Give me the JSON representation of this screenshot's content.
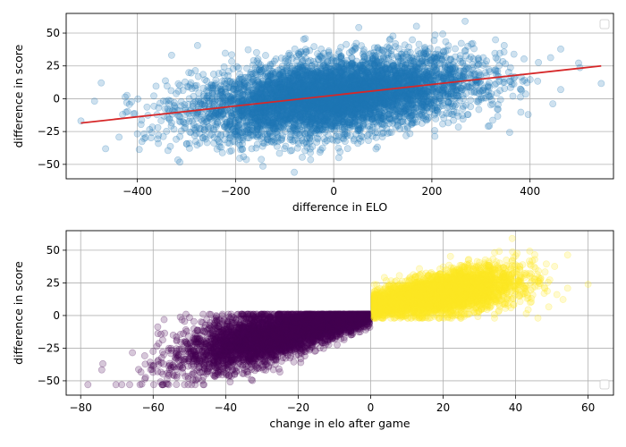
{
  "chart_data": [
    {
      "type": "scatter",
      "xlabel": "difference in ELO",
      "ylabel": "difference in score",
      "xlim": [
        -545,
        570
      ],
      "ylim": [
        -61,
        65
      ],
      "xticks": [
        -400,
        -200,
        0,
        200,
        400
      ],
      "yticks": [
        -50,
        -25,
        0,
        25,
        50
      ],
      "grid": true,
      "legend": "top-right, empty",
      "colors": {
        "points": "#1f77b4",
        "fit_line": "#d62728"
      },
      "fit_line": {
        "x": [
          -515,
          545
        ],
        "y": [
          -18.5,
          25
        ]
      },
      "series": [
        {
          "type": "scatter",
          "point_count": 6000,
          "x_range": [
            -515,
            545
          ],
          "y_range": [
            -56,
            59
          ],
          "trend_slope": 0.041,
          "spread_sd": 14
        }
      ]
    },
    {
      "type": "scatter",
      "xlabel": "change in elo after game",
      "ylabel": "difference in score",
      "xlim": [
        -84,
        67
      ],
      "ylim": [
        -61,
        65
      ],
      "xticks": [
        -80,
        -60,
        -40,
        -20,
        0,
        20,
        40,
        60
      ],
      "yticks": [
        -50,
        -25,
        0,
        25,
        50
      ],
      "grid": true,
      "legend": "bottom-right, empty",
      "colors": {
        "losses": "#440154",
        "wins": "#fde725"
      },
      "series": [
        {
          "type": "scatter",
          "color": "#440154",
          "point_count": 4500,
          "x_range": [
            -78,
            0
          ],
          "y_range": [
            -53,
            1
          ]
        },
        {
          "type": "scatter",
          "color": "#fde725",
          "point_count": 4500,
          "x_range": [
            1,
            60
          ],
          "y_range": [
            -2,
            59
          ]
        }
      ]
    }
  ]
}
